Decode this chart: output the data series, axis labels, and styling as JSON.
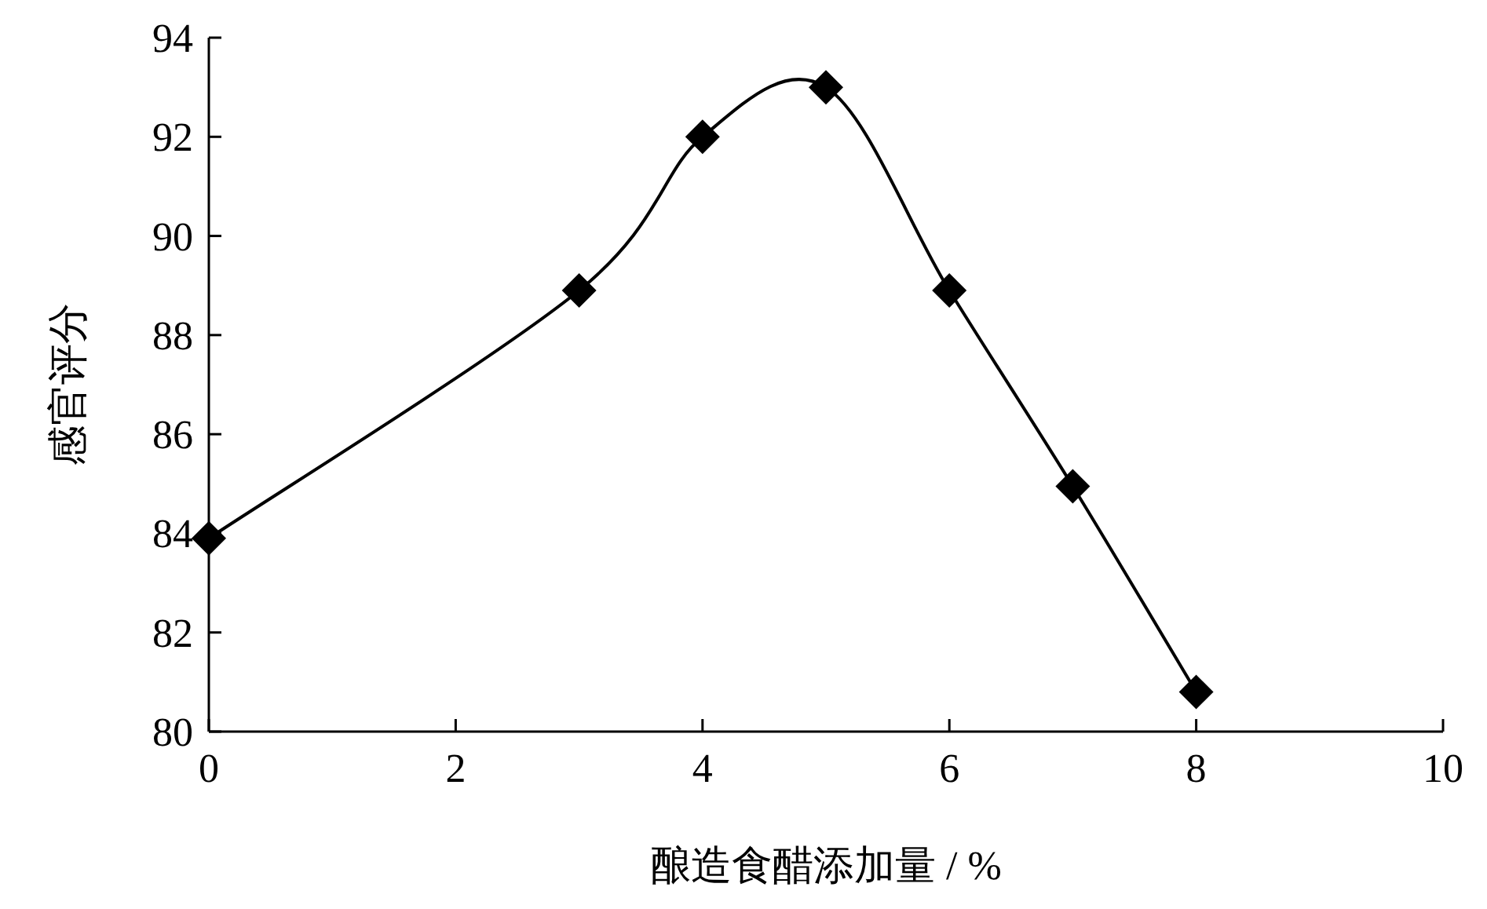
{
  "chart_data": {
    "type": "line",
    "xlabel": "酿造食醋添加量 / %",
    "ylabel": "感官评分",
    "x": [
      0,
      3,
      4,
      5,
      6,
      7,
      8
    ],
    "series": [
      {
        "color": "#000000",
        "values": [
          83.9,
          88.9,
          92.0,
          93.0,
          88.9,
          84.95,
          80.8
        ]
      }
    ],
    "xlim": [
      0,
      10
    ],
    "xticks": [
      0,
      2,
      4,
      6,
      8,
      10
    ],
    "ylim": [
      80,
      94
    ],
    "yticks": [
      80,
      82,
      84,
      86,
      88,
      90,
      92,
      94
    ],
    "marker": "diamond",
    "line_style": "solid"
  }
}
